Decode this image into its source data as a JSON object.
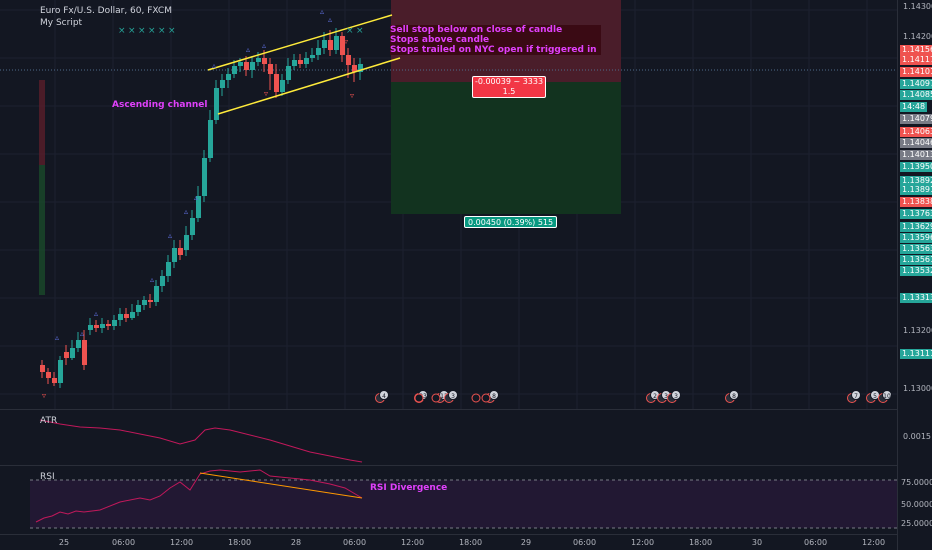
{
  "chart": {
    "symbol_title": "Euro Fx/U.S. Dollar, 60, FXCM",
    "indicator_title": "My Script",
    "annotation_channel": "Ascending channel",
    "annotation_rsi": "RSI Divergence",
    "rules_text": [
      "Sell stop below on close of candle",
      "Stops above candle",
      "Stops trailed on NYC open if triggered in"
    ],
    "position_risk_label": "-0.00039 ~ 3333",
    "position_risk_ratio": "1.5",
    "position_reward_label": "0.00450 (0.39%) 515",
    "colors": {
      "up": "#26a69a",
      "down": "#ef5350",
      "channel": "#ffeb3b",
      "magenta": "#e040fb",
      "stop_zone": "#4a1d2a",
      "target_zone": "#12331f"
    }
  },
  "price_axis": {
    "ticks": [
      "1.14300",
      "1.14200",
      "1.13200",
      "1.13000"
    ],
    "tags": [
      {
        "v": "1.14156",
        "c": "#ef5350"
      },
      {
        "v": "1.14117",
        "c": "#ef5350"
      },
      {
        "v": "1.14101",
        "c": "#ef5350"
      },
      {
        "v": "1.14097",
        "c": "#26a69a"
      },
      {
        "v": "1.14085",
        "c": "#26a69a"
      },
      {
        "v": "14:48",
        "c": "#26a69a"
      },
      {
        "v": "1.14079",
        "c": "#787b86"
      },
      {
        "v": "1.14063",
        "c": "#ef5350"
      },
      {
        "v": "1.14046",
        "c": "#787b86"
      },
      {
        "v": "1.14013",
        "c": "#787b86"
      },
      {
        "v": "1.13950",
        "c": "#26a69a"
      },
      {
        "v": "1.13892",
        "c": "#26a69a"
      },
      {
        "v": "1.13891",
        "c": "#26a69a"
      },
      {
        "v": "1.13838",
        "c": "#ef5350"
      },
      {
        "v": "1.13763",
        "c": "#26a69a"
      },
      {
        "v": "1.13629",
        "c": "#26a69a"
      },
      {
        "v": "1.13596",
        "c": "#26a69a"
      },
      {
        "v": "1.13563",
        "c": "#26a69a"
      },
      {
        "v": "1.13561",
        "c": "#26a69a"
      },
      {
        "v": "1.13532",
        "c": "#26a69a"
      },
      {
        "v": "1.13313",
        "c": "#26a69a"
      },
      {
        "v": "1.13111",
        "c": "#26a69a"
      }
    ]
  },
  "atr_pane": {
    "title": "ATR",
    "tick": "0.0015"
  },
  "rsi_pane": {
    "title": "RSI",
    "ticks": [
      "75.0000",
      "50.0000",
      "25.0000"
    ]
  },
  "time_axis": [
    "25",
    "06:00",
    "12:00",
    "18:00",
    "28",
    "06:00",
    "12:00",
    "18:00",
    "29",
    "06:00",
    "12:00",
    "18:00",
    "30",
    "06:00",
    "12:00"
  ],
  "events": [
    "4",
    "33",
    "12",
    "3",
    "8",
    "2",
    "3",
    "3",
    "8",
    "7",
    "5",
    "10"
  ]
}
